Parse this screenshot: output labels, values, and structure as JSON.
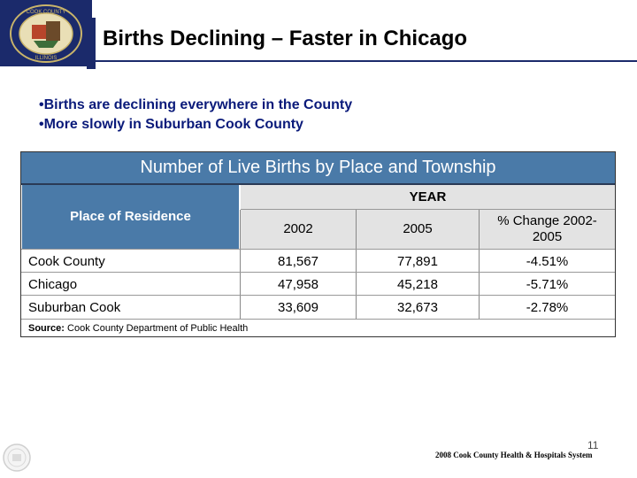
{
  "header": {
    "title": "Births Declining – Faster in Chicago",
    "seal_text": "COOK COUNTY · ILLINOIS",
    "seal_year": "1831"
  },
  "bullets": [
    "•Births are declining everywhere in the County",
    "•More slowly in Suburban Cook County"
  ],
  "table": {
    "title": "Number of Live Births by Place and Township",
    "place_header": "Place of Residence",
    "year_header": "YEAR",
    "columns": [
      "2002",
      "2005",
      "% Change 2002-2005"
    ],
    "rows": [
      {
        "place": "Cook County",
        "v2002": "81,567",
        "v2005": "77,891",
        "change": "-4.51%"
      },
      {
        "place": "Chicago",
        "v2002": "47,958",
        "v2005": "45,218",
        "change": "-5.71%"
      },
      {
        "place": "Suburban Cook",
        "v2002": "33,609",
        "v2005": "32,673",
        "change": "-2.78%"
      }
    ],
    "source_label": "Source:",
    "source_text": " Cook County Department of Public Health"
  },
  "footer": {
    "page_number": "11",
    "org_text": "2008 Cook County Health & Hospitals System"
  },
  "colors": {
    "navy": "#1b2a6b",
    "table_header_blue": "#4a7aa8",
    "bullet_text": "#0a1a7a",
    "year_band": "#e3e3e3"
  }
}
